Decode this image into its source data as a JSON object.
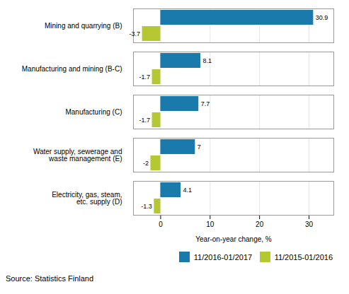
{
  "chart_data": {
    "type": "bar",
    "orientation": "horizontal",
    "categories": [
      "Mining and quarrying (B)",
      "Manufacturing and mining (B-C)",
      "Manufacturing (C)",
      "Water supply, sewerage and\nwaste management (E)",
      "Electricity, gas, steam,\netc. supply (D)"
    ],
    "series": [
      {
        "name": "11/2016-01/2017",
        "color": "#1a7aab",
        "values": [
          30.9,
          8.1,
          7.7,
          7.0,
          4.1
        ]
      },
      {
        "name": "11/2015-01/2016",
        "color": "#b5c832",
        "values": [
          -3.7,
          -1.7,
          -1.7,
          -2.0,
          -1.3
        ]
      }
    ],
    "xlabel": "Year-on-year change, %",
    "xlim": [
      -5.5,
      35
    ],
    "xticks": [
      0,
      10,
      20,
      30
    ],
    "grid": true,
    "data_labels": true,
    "legend": "lower right",
    "annotations": [
      "Source: Statistics Finland"
    ]
  }
}
